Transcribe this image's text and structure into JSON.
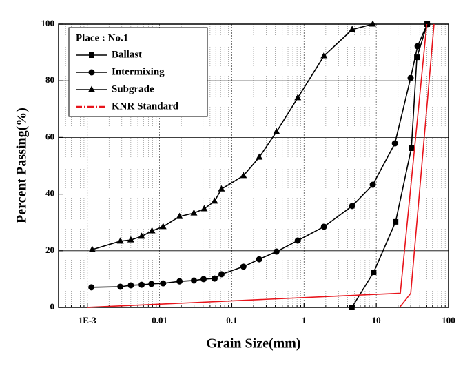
{
  "chart_data": {
    "type": "line",
    "x_label": "Grain Size(mm)",
    "y_label": "Percent Passing(%)",
    "legend_title": "Place : No.1",
    "legend": "top-left",
    "xscale": "log",
    "xlim": [
      0.0004,
      100
    ],
    "ylim": [
      0,
      100
    ],
    "xticks": [
      {
        "value": 0.001,
        "label": "1E-3"
      },
      0.01,
      0.1,
      1,
      10,
      100
    ],
    "yticks": [
      0,
      20,
      40,
      60,
      80,
      100
    ],
    "grid": true,
    "series": [
      {
        "name": "Ballast",
        "color": "#000000",
        "marker": "square",
        "dash": "solid",
        "x": [
          4.6,
          9.2,
          18.5,
          30.6,
          36.5,
          50.7
        ],
        "values": [
          0,
          12.4,
          30.2,
          56.2,
          88.3,
          100
        ]
      },
      {
        "name": "Intermixing",
        "color": "#000000",
        "marker": "circle",
        "dash": "solid",
        "x": [
          0.00114,
          0.00287,
          0.004,
          0.00565,
          0.0077,
          0.0112,
          0.0189,
          0.0299,
          0.0407,
          0.0578,
          0.072,
          0.145,
          0.24,
          0.416,
          0.82,
          1.89,
          4.64,
          8.95,
          18.1,
          29.9,
          37.3,
          50.7
        ],
        "values": [
          7.1,
          7.3,
          7.8,
          8.0,
          8.3,
          8.5,
          9.2,
          9.5,
          10.0,
          10.2,
          11.7,
          14.4,
          17.0,
          19.7,
          23.6,
          28.5,
          35.8,
          43.3,
          57.9,
          81.0,
          92.2,
          100
        ]
      },
      {
        "name": "Subgrade",
        "color": "#000000",
        "marker": "triangle",
        "dash": "solid",
        "x": [
          0.00117,
          0.00287,
          0.004,
          0.00565,
          0.00786,
          0.0112,
          0.0189,
          0.0299,
          0.0415,
          0.0578,
          0.072,
          0.145,
          0.24,
          0.416,
          0.82,
          1.89,
          4.64,
          8.95
        ],
        "values": [
          20.4,
          23.4,
          23.8,
          25.1,
          27.0,
          28.5,
          32.1,
          33.3,
          34.8,
          37.5,
          41.8,
          46.5,
          53.0,
          62.0,
          74.0,
          88.8,
          98.1,
          100
        ]
      },
      {
        "name": "KNR Standard",
        "color": "#e8141b",
        "marker": "none",
        "dash": "dashdot",
        "x": [
          0.001,
          21.5,
          50,
          null,
          21,
          30,
          63
        ],
        "values": [
          0,
          5,
          100,
          null,
          0,
          5,
          100
        ]
      }
    ]
  }
}
